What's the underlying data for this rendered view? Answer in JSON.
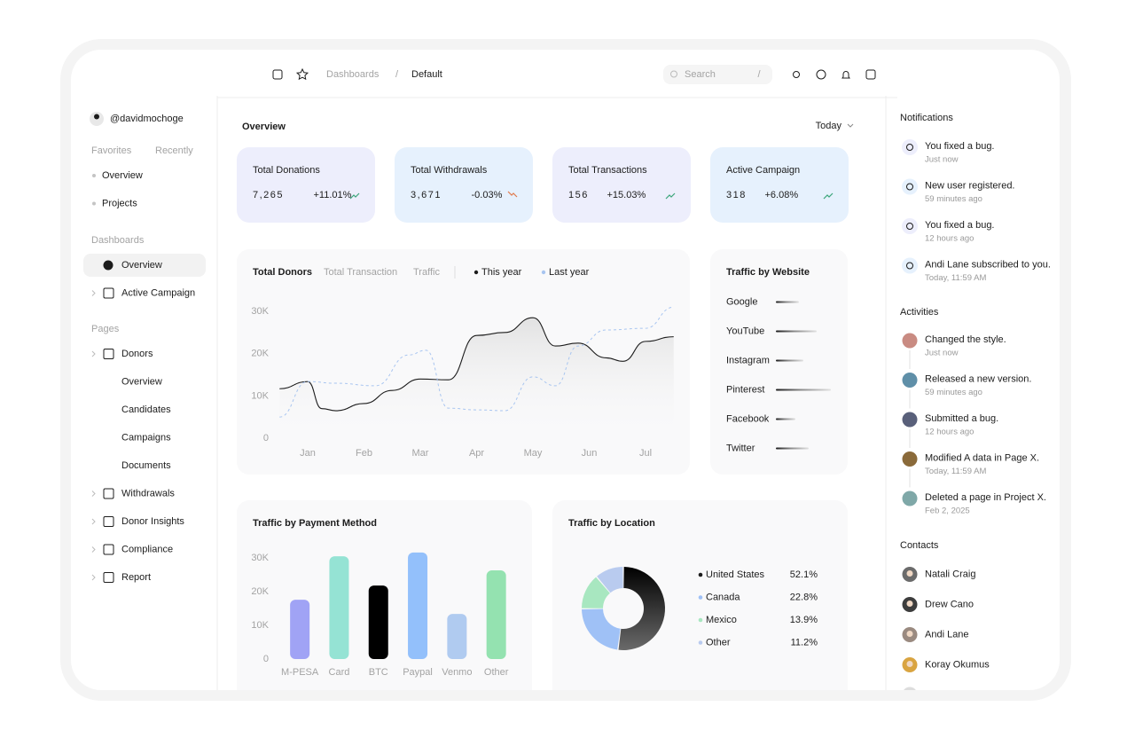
{
  "topbar": {
    "breadcrumb": [
      "Dashboards",
      "Default"
    ],
    "separator": "/",
    "search": {
      "placeholder": "Search",
      "shortcut": "/"
    }
  },
  "sidebar": {
    "user": "@davidmochoge",
    "tabs": [
      "Favorites",
      "Recently"
    ],
    "favorites": [
      "Overview",
      "Projects"
    ],
    "sections": [
      {
        "heading": "Dashboards",
        "items": [
          {
            "label": "Overview"
          },
          {
            "label": "Active Campaign"
          }
        ]
      },
      {
        "heading": "Pages",
        "items": [
          {
            "label": "Donors",
            "children": [
              "Overview",
              "Candidates",
              "Campaigns",
              "Documents"
            ]
          },
          {
            "label": "Withdrawals"
          },
          {
            "label": "Donor Insights"
          },
          {
            "label": "Compliance"
          },
          {
            "label": "Report"
          }
        ]
      }
    ]
  },
  "overview": {
    "title": "Overview",
    "period": "Today",
    "cards": [
      {
        "label": "Total Donations",
        "value": "7,265",
        "change": "+11.01%",
        "color": "#edeefc"
      },
      {
        "label": "Total Withdrawals",
        "value": "3,671",
        "change": "-0.03%",
        "color": "#e6f1fd"
      },
      {
        "label": "Total Transactions",
        "value": "156",
        "change": "+15.03%",
        "color": "#edeefc"
      },
      {
        "label": "Active Campaign",
        "value": "318",
        "change": "+6.08%",
        "color": "#e6f1fd"
      }
    ]
  },
  "chart_data": [
    {
      "type": "line",
      "tabs": [
        "Total Donors",
        "Total Transaction",
        "Traffic"
      ],
      "xlim": [
        0.5,
        7.5
      ],
      "xticks": [
        {
          "value": 1,
          "label": "Jan"
        },
        {
          "value": 2,
          "label": "Feb"
        },
        {
          "value": 3,
          "label": "Mar"
        },
        {
          "value": 4,
          "label": "Apr"
        },
        {
          "value": 5,
          "label": "May"
        },
        {
          "value": 6,
          "label": "Jun"
        },
        {
          "value": 7,
          "label": "Jul"
        }
      ],
      "ylim": [
        0,
        32000
      ],
      "yticks": [
        0,
        {
          "value": 10000,
          "label": "10K"
        },
        {
          "value": 20000,
          "label": "20K"
        },
        {
          "value": 30000,
          "label": "30K"
        }
      ],
      "series": [
        {
          "name": "This year",
          "color": "#1c1c1c",
          "dashed": false,
          "x": [
            0.5,
            1.0,
            1.25,
            1.5,
            2.0,
            2.5,
            3.0,
            3.5,
            4.0,
            4.5,
            5.0,
            5.4,
            5.8,
            6.3,
            6.6,
            7.0,
            7.5
          ],
          "values": [
            11700,
            13400,
            7000,
            6500,
            8200,
            11300,
            14000,
            13800,
            24300,
            25000,
            28500,
            21800,
            22500,
            19000,
            18200,
            22900,
            24000
          ]
        },
        {
          "name": "Last year",
          "color": "#a8c5f0",
          "dashed": true,
          "x": [
            0.5,
            1.0,
            1.5,
            2.2,
            2.8,
            3.1,
            3.5,
            4.0,
            4.5,
            5.0,
            5.4,
            5.8,
            6.3,
            7.0,
            7.5
          ],
          "values": [
            5000,
            13400,
            13000,
            12400,
            19700,
            20800,
            7100,
            6700,
            6500,
            14500,
            12400,
            21800,
            25600,
            26000,
            31000
          ]
        }
      ]
    },
    {
      "type": "hbar",
      "title": "Traffic by Website",
      "categories": [
        "Google",
        "YouTube",
        "Instagram",
        "Pinterest",
        "Facebook",
        "Twitter"
      ],
      "values": [
        26,
        46,
        31,
        62,
        22,
        37
      ]
    },
    {
      "type": "bar",
      "title": "Traffic by Payment Method",
      "categories": [
        "M-PESA",
        "Card",
        "BTC",
        "Paypal",
        "Venmo",
        "Other"
      ],
      "values": [
        17600,
        30500,
        21800,
        31600,
        13400,
        26300
      ],
      "colors": [
        "#a0a3f5",
        "#95e3d4",
        "#000000",
        "#93c0fb",
        "#b0cbf0",
        "#94e2b0"
      ],
      "ylim": [
        0,
        32000
      ],
      "yticks": [
        0,
        {
          "value": 10000,
          "label": "10K"
        },
        {
          "value": 20000,
          "label": "20K"
        },
        {
          "value": 30000,
          "label": "30K"
        }
      ]
    },
    {
      "type": "pie",
      "title": "Traffic by Location",
      "categories": [
        "United States",
        "Canada",
        "Mexico",
        "Other"
      ],
      "values": [
        52.1,
        22.8,
        13.9,
        11.2
      ],
      "value_labels": [
        "52.1%",
        "22.8%",
        "13.9%",
        "11.2%"
      ],
      "colors": [
        "#1c1c1c",
        "#9fc1f6",
        "#a8e7c0",
        "#b9cbef"
      ]
    }
  ],
  "notifications": {
    "title": "Notifications",
    "items": [
      {
        "text": "You fixed a bug.",
        "time": "Just now"
      },
      {
        "text": "New user registered.",
        "time": "59 minutes ago"
      },
      {
        "text": "You fixed a bug.",
        "time": "12 hours ago"
      },
      {
        "text": "Andi Lane subscribed to you.",
        "time": "Today, 11:59 AM"
      }
    ]
  },
  "activities": {
    "title": "Activities",
    "items": [
      {
        "text": "Changed the style.",
        "time": "Just now"
      },
      {
        "text": "Released a new version.",
        "time": "59 minutes ago"
      },
      {
        "text": "Submitted a bug.",
        "time": "12 hours ago"
      },
      {
        "text": "Modified A data in Page X.",
        "time": "Today, 11:59 AM"
      },
      {
        "text": "Deleted a page in Project X.",
        "time": "Feb 2, 2025"
      }
    ]
  },
  "contacts": {
    "title": "Contacts",
    "items": [
      "Natali Craig",
      "Drew Cano",
      "Andi Lane",
      "Koray Okumus"
    ]
  }
}
